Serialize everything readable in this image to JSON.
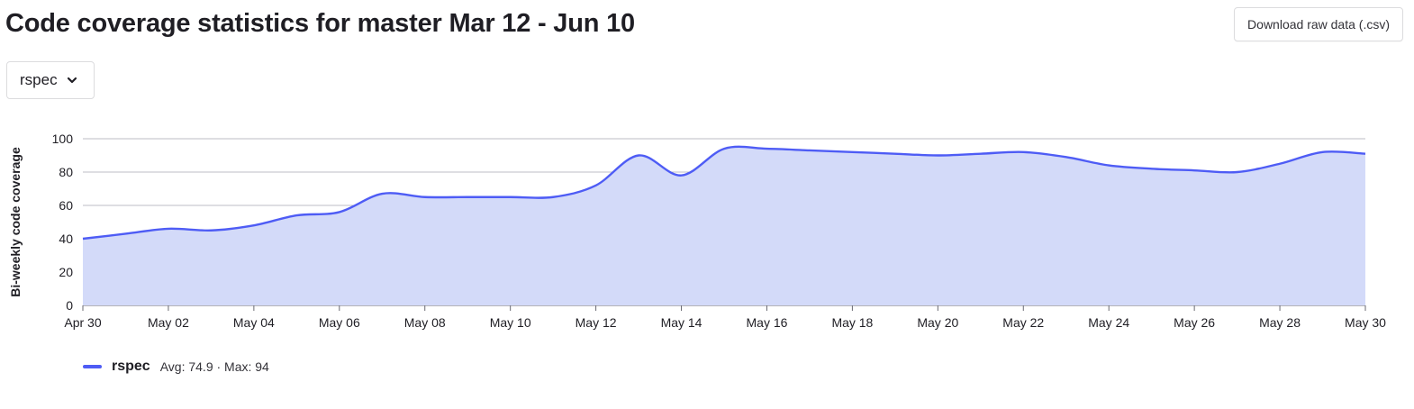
{
  "header": {
    "title": "Code coverage statistics for master Mar 12 - Jun 10",
    "download_label": "Download raw data (.csv)"
  },
  "job_selector": {
    "selected": "rspec"
  },
  "legend": {
    "name": "rspec",
    "stats": "Avg: 74.9 · Max: 94"
  },
  "colors": {
    "line": "#4e5cf5",
    "fill": "#d3daf9",
    "grid": "#bcbcc4",
    "axis": "#6a6a72"
  },
  "chart_data": {
    "type": "area",
    "title": "",
    "xlabel": "",
    "ylabel": "Bi-weekly code coverage",
    "ylim": [
      0,
      100
    ],
    "yticks": [
      0,
      20,
      40,
      60,
      80,
      100
    ],
    "xlim": [
      "Apr 30",
      "May 30"
    ],
    "x_tick_labels": [
      "Apr 30",
      "May 02",
      "May 04",
      "May 06",
      "May 08",
      "May 10",
      "May 12",
      "May 14",
      "May 16",
      "May 18",
      "May 20",
      "May 22",
      "May 24",
      "May 26",
      "May 28",
      "May 30"
    ],
    "grid": true,
    "legend_position": "bottom-left",
    "series": [
      {
        "name": "rspec",
        "x": [
          "Apr 30",
          "May 01",
          "May 02",
          "May 03",
          "May 04",
          "May 05",
          "May 06",
          "May 07",
          "May 08",
          "May 09",
          "May 10",
          "May 11",
          "May 12",
          "May 13",
          "May 14",
          "May 15",
          "May 16",
          "May 17",
          "May 18",
          "May 19",
          "May 20",
          "May 21",
          "May 22",
          "May 23",
          "May 24",
          "May 25",
          "May 26",
          "May 27",
          "May 28",
          "May 29",
          "May 30"
        ],
        "values": [
          40,
          43,
          46,
          45,
          48,
          54,
          56,
          67,
          65,
          65,
          65,
          65,
          72,
          90,
          78,
          94,
          94,
          93,
          92,
          91,
          90,
          91,
          92,
          89,
          84,
          82,
          81,
          80,
          85,
          92,
          91
        ]
      }
    ]
  }
}
